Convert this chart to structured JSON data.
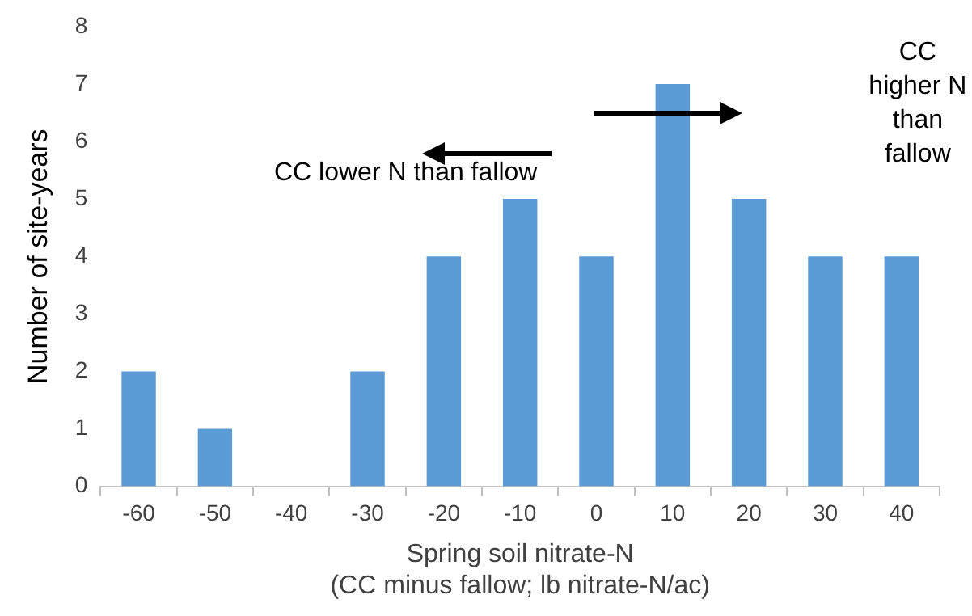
{
  "chart_data": {
    "type": "bar",
    "categories": [
      "-60",
      "-50",
      "-40",
      "-30",
      "-20",
      "-10",
      "0",
      "10",
      "20",
      "30",
      "40"
    ],
    "values": [
      2,
      1,
      0,
      2,
      4,
      5,
      4,
      7,
      5,
      4,
      4
    ],
    "color": "#5b9bd5",
    "ylim": [
      0,
      8
    ],
    "yticks": [
      0,
      1,
      2,
      3,
      4,
      5,
      6,
      7,
      8
    ],
    "grid": false,
    "legend": false,
    "xlabel": "Spring soil nitrate-N\n(CC minus fallow; lb nitrate-N/ac)",
    "ylabel": "Number of site-years",
    "annotations": [
      "CC lower N than fallow",
      "CC higher N than fallow"
    ]
  }
}
